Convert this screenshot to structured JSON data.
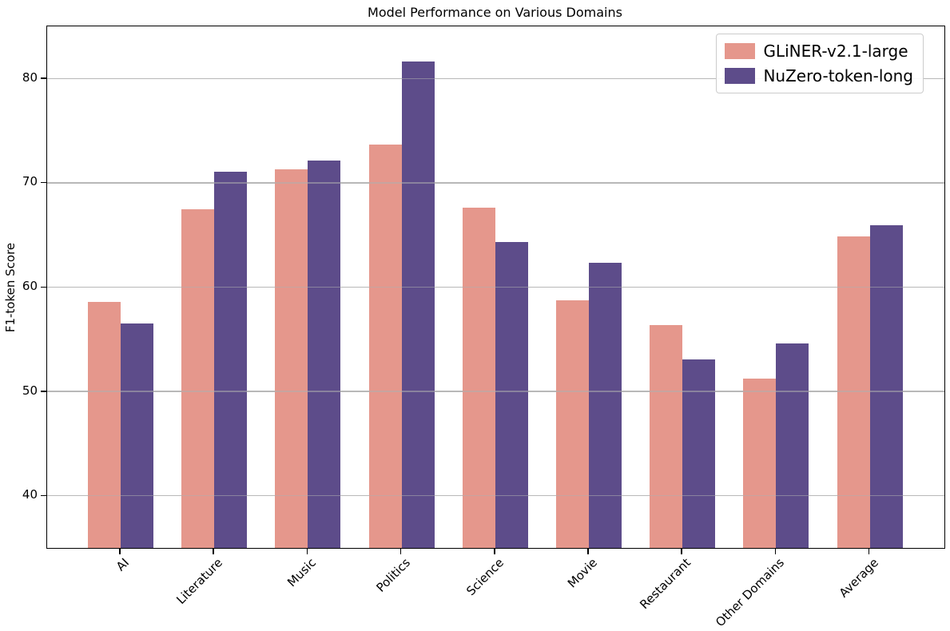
{
  "chart_data": {
    "type": "bar",
    "title": "Model Performance on Various Domains",
    "xlabel": "",
    "ylabel": "F1-token Score",
    "categories": [
      "AI",
      "Literature",
      "Music",
      "Politics",
      "Science",
      "Movie",
      "Restaurant",
      "Other Domains",
      "Average"
    ],
    "series": [
      {
        "name": "GLiNER-v2.1-large",
        "color": "#e5978c",
        "values": [
          58.6,
          67.5,
          71.3,
          73.7,
          67.6,
          58.7,
          56.4,
          51.2,
          64.9
        ]
      },
      {
        "name": "NuZero-token-long",
        "color": "#5d4c8a",
        "values": [
          56.5,
          71.1,
          72.1,
          81.6,
          64.3,
          62.3,
          53.1,
          54.6,
          65.9
        ]
      }
    ],
    "ylim": [
      35,
      85
    ],
    "yticks": [
      40,
      50,
      60,
      70,
      80
    ],
    "grid": "horizontal",
    "legend_position": "upper right",
    "x_tick_rotation": 45,
    "axis_color": "#000000",
    "gridline_color": "#c4c4c4"
  }
}
